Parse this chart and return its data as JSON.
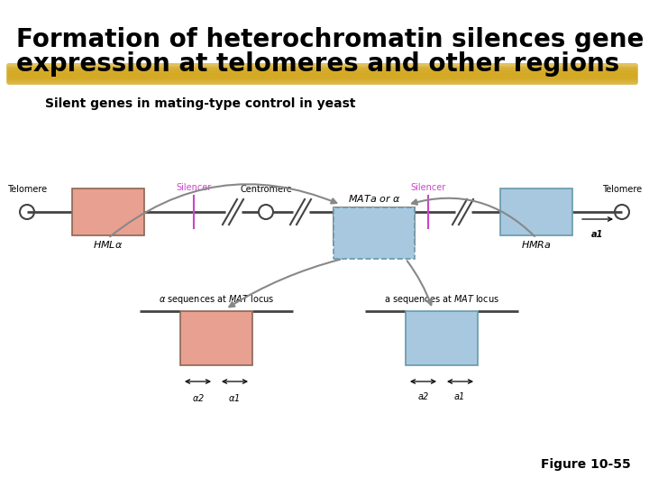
{
  "title_line1": "Formation of heterochromatin silences gene",
  "title_line2": "expression at telomeres and other regions",
  "subtitle": "Silent genes in mating-type control in yeast",
  "figure_label": "Figure 10-55",
  "bg_color": "#ffffff",
  "highlight_color": "#D4A820",
  "salmon_color": "#E8A090",
  "blue_color": "#A8C8E0",
  "silencer_color": "#CC44CC",
  "line_color": "#444444",
  "arrow_color": "#888888",
  "title_fontsize": 20,
  "subtitle_fontsize": 10,
  "fig_label_fontsize": 10,
  "diagram_fontsize": 7
}
